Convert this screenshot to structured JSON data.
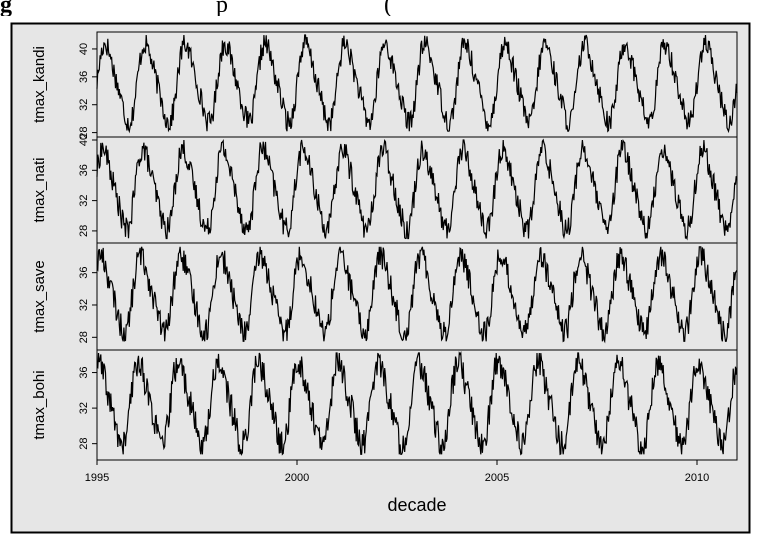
{
  "caption_fragment": {
    "lead": "g",
    "rest": "                                  p                          ("
  },
  "chart_data": {
    "type": "line",
    "xlabel": "decade",
    "x_range": [
      1995,
      2011
    ],
    "x_ticks": [
      1995,
      2000,
      2005,
      2010
    ],
    "x_tick_labels": [
      "1995",
      "2000",
      "2005",
      "2010"
    ],
    "panels": [
      {
        "ylabel": "tmax_kandi",
        "ylim": [
          27.8,
          42.0
        ],
        "y_ticks": [
          28,
          32,
          36,
          40
        ],
        "y_tick_labels": [
          "28",
          "32",
          "36",
          "40"
        ],
        "min": 28.2,
        "max": 42.0,
        "phase": 0.0
      },
      {
        "ylabel": "tmax_nati",
        "ylim": [
          26.8,
          40.0
        ],
        "y_ticks": [
          28,
          32,
          36,
          40
        ],
        "y_tick_labels": [
          "28",
          "32",
          "36",
          "40"
        ],
        "min": 27.0,
        "max": 40.0,
        "phase": 0.35
      },
      {
        "ylabel": "tmax_save",
        "ylim": [
          26.8,
          39.3
        ],
        "y_ticks": [
          28,
          32,
          36
        ],
        "y_tick_labels": [
          "28",
          "32",
          "36"
        ],
        "min": 27.5,
        "max": 39.2,
        "phase": 0.7
      },
      {
        "ylabel": "tmax_bohi",
        "ylim": [
          26.5,
          38.2
        ],
        "y_ticks": [
          28,
          32,
          36
        ],
        "y_tick_labels": [
          "28",
          "32",
          "36"
        ],
        "min": 26.8,
        "max": 38.2,
        "phase": 1.05
      }
    ],
    "series_note_free": true,
    "season_peaks_per_year": 1,
    "grid": false
  },
  "colors": {
    "panel_background": "#e6e6e6",
    "line": "#000000",
    "axis": "#000000",
    "border": "#000000"
  }
}
